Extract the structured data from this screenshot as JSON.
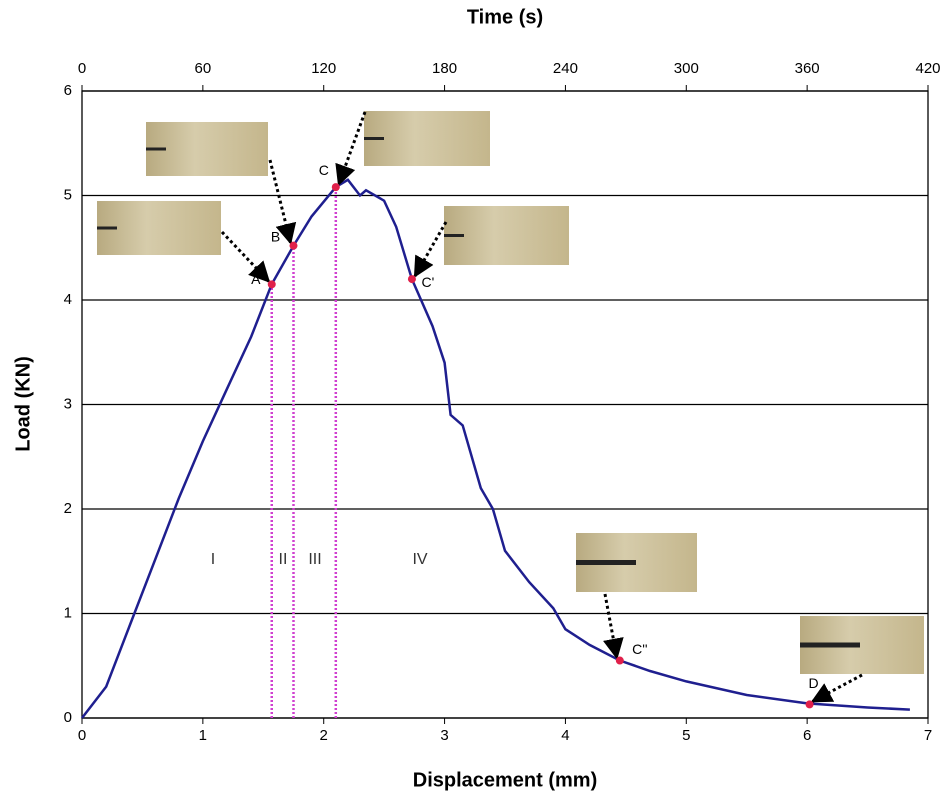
{
  "chart_data": {
    "type": "line",
    "xlabel": "Displacement (mm)",
    "ylabel": "Load (KN)",
    "x2label": "Time (s)",
    "xlim": [
      0,
      7
    ],
    "xticks": [
      0,
      1,
      2,
      3,
      4,
      5,
      6,
      7
    ],
    "ylim": [
      0,
      6
    ],
    "yticks": [
      0,
      1,
      2,
      3,
      4,
      5,
      6
    ],
    "x2lim": [
      0,
      420
    ],
    "x2ticks": [
      0,
      60,
      120,
      180,
      240,
      300,
      360,
      420
    ],
    "grid": true,
    "series": [
      {
        "color": "#1f1f8f",
        "x": [
          0,
          0.2,
          0.4,
          0.6,
          0.8,
          1.0,
          1.2,
          1.4,
          1.57,
          1.75,
          1.9,
          2.1,
          2.2,
          2.3,
          2.35,
          2.5,
          2.6,
          2.73,
          2.9,
          3.0,
          3.05,
          3.15,
          3.3,
          3.4,
          3.5,
          3.7,
          3.9,
          4.0,
          4.2,
          4.45,
          4.7,
          5.0,
          5.5,
          6.0,
          6.5,
          6.85
        ],
        "values": [
          0,
          0.3,
          0.9,
          1.5,
          2.1,
          2.65,
          3.15,
          3.65,
          4.15,
          4.52,
          4.8,
          5.08,
          5.15,
          5.0,
          5.05,
          4.95,
          4.7,
          4.2,
          3.75,
          3.4,
          2.9,
          2.8,
          2.2,
          2.0,
          1.6,
          1.3,
          1.05,
          0.85,
          0.7,
          0.55,
          0.45,
          0.35,
          0.22,
          0.14,
          0.1,
          0.08
        ]
      }
    ],
    "points": {
      "color": "#e0204a",
      "labels": [
        "A",
        "B",
        "C",
        "C'",
        "C''",
        "D"
      ],
      "x": [
        1.57,
        1.75,
        2.1,
        2.73,
        4.45,
        6.02
      ],
      "values": [
        4.15,
        4.52,
        5.08,
        4.2,
        0.55,
        0.13
      ]
    },
    "boundaries": {
      "color": "#d040d0",
      "x": [
        1.57,
        1.75,
        2.1
      ]
    },
    "regions": [
      "I",
      "II",
      "III",
      "IV"
    ]
  }
}
